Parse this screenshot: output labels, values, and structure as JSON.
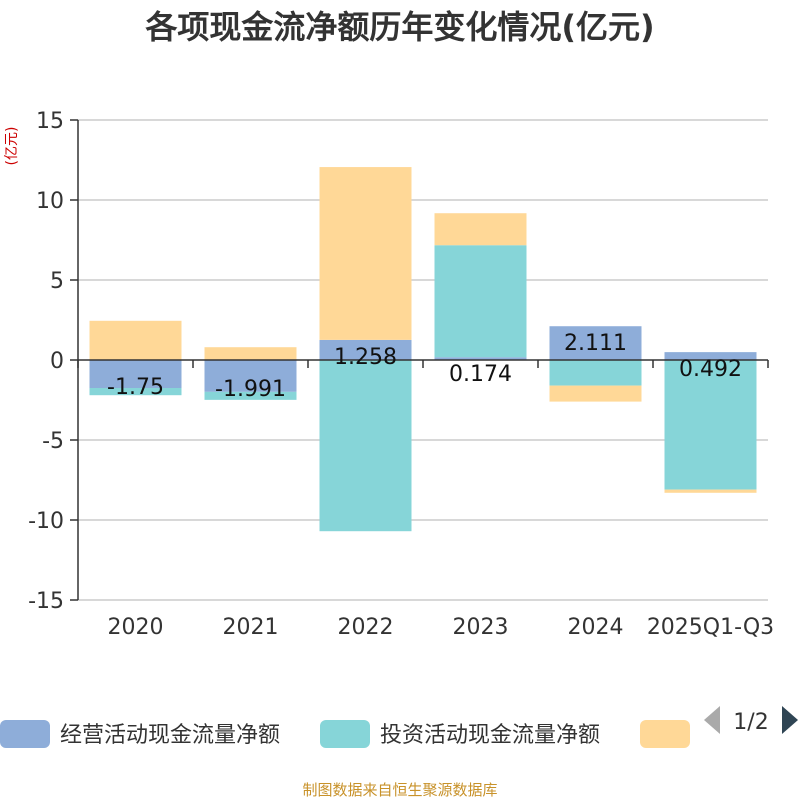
{
  "chart_data": {
    "type": "bar",
    "stacked": true,
    "title": "各项现金流净额历年变化情况(亿元)",
    "unit_label": "(亿元)",
    "categories": [
      "2020",
      "2021",
      "2022",
      "2023",
      "2024",
      "2025Q1-Q3"
    ],
    "ylim": [
      -15,
      15
    ],
    "yticks": [
      15,
      10,
      5,
      0,
      -5,
      -10,
      -15
    ],
    "grid": true,
    "series": [
      {
        "name": "经营活动现金流量净额",
        "color": "#8eadd9",
        "values": [
          -1.75,
          -1.991,
          1.258,
          0.174,
          2.111,
          0.492
        ]
      },
      {
        "name": "投资活动现金流量净额",
        "color": "#86d5d8",
        "values": [
          -0.45,
          -0.5,
          -10.7,
          7.0,
          -1.6,
          -8.1
        ]
      },
      {
        "name": "",
        "color": "#ffd897",
        "values": [
          2.45,
          0.8,
          10.8,
          2.0,
          -1.0,
          -0.2
        ]
      }
    ],
    "data_labels": [
      "-1.75",
      "-1.991",
      "1.258",
      "0.174",
      "2.111",
      "0.492"
    ]
  },
  "legend": {
    "items": [
      {
        "label": "经营活动现金流量净额",
        "color": "#8eadd9"
      },
      {
        "label": "投资活动现金流量净额",
        "color": "#86d5d8"
      },
      {
        "label": "",
        "color": "#ffd897"
      }
    ],
    "page_text": "1/2"
  },
  "footer": {
    "source": "制图数据来自恒生聚源数据库"
  }
}
